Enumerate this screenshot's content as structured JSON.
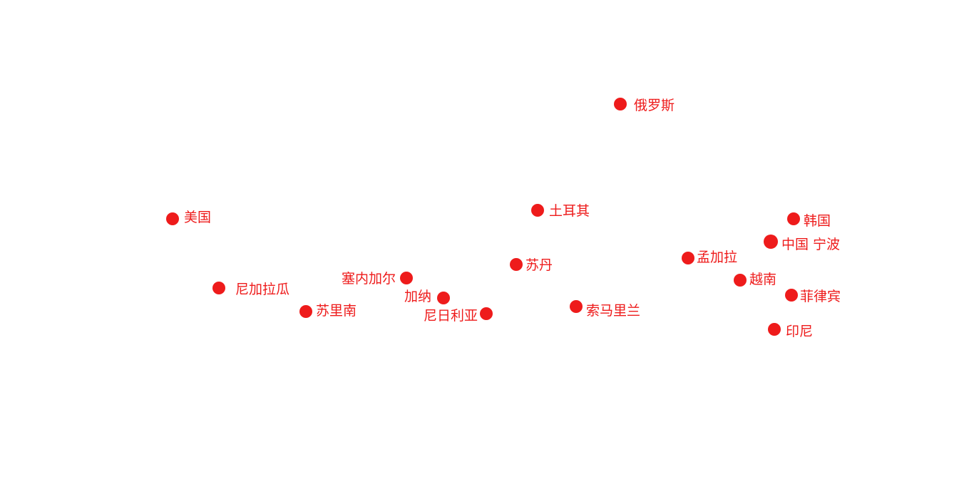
{
  "marker_color": "#ee1b1b",
  "markers": [
    {
      "name": "俄罗斯"
    },
    {
      "name": "美国"
    },
    {
      "name": "土耳其"
    },
    {
      "name": "韩国"
    },
    {
      "name": "中国 宁波"
    },
    {
      "name": "孟加拉"
    },
    {
      "name": "苏丹"
    },
    {
      "name": "塞内加尔"
    },
    {
      "name": "越南"
    },
    {
      "name": "尼加拉瓜"
    },
    {
      "name": "菲律宾"
    },
    {
      "name": "加纳"
    },
    {
      "name": "苏里南"
    },
    {
      "name": "尼日利亚"
    },
    {
      "name": "索马里兰"
    },
    {
      "name": "印尼"
    }
  ]
}
